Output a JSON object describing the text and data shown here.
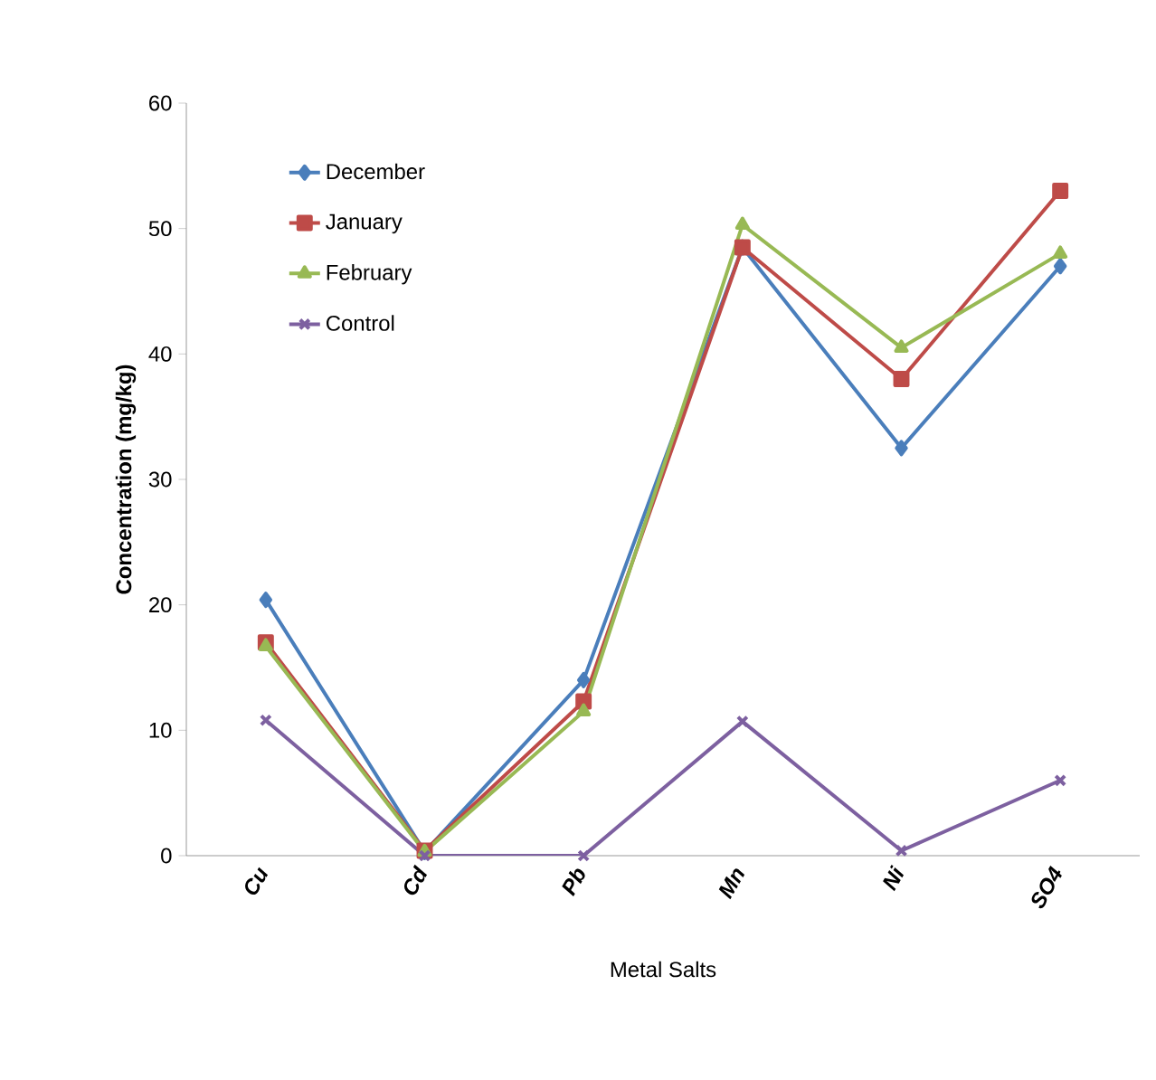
{
  "chart_data": {
    "type": "line",
    "xlabel": "Metal Salts",
    "ylabel": "Concentration (mg/kg)",
    "categories": [
      "Cu",
      "Cd",
      "Pb",
      "Mn",
      "Ni",
      "SO4"
    ],
    "series": [
      {
        "name": "December",
        "color": "#4a7ebb",
        "marker": "diamond",
        "values": [
          20.4,
          0.3,
          14,
          48.5,
          32.5,
          47
        ]
      },
      {
        "name": "January",
        "color": "#be4b48",
        "marker": "square",
        "values": [
          17,
          0.4,
          12.3,
          48.5,
          38,
          53
        ]
      },
      {
        "name": "February",
        "color": "#98b954",
        "marker": "triangle",
        "values": [
          16.7,
          0.3,
          11.5,
          50.3,
          40.5,
          48
        ]
      },
      {
        "name": "Control",
        "color": "#7d60a0",
        "marker": "cross",
        "values": [
          10.8,
          0,
          0,
          10.7,
          0.4,
          6
        ]
      }
    ],
    "ylim": [
      0,
      60
    ],
    "yticks": [
      0,
      10,
      20,
      30,
      40,
      50,
      60
    ],
    "grid": false,
    "legend": "top left"
  }
}
